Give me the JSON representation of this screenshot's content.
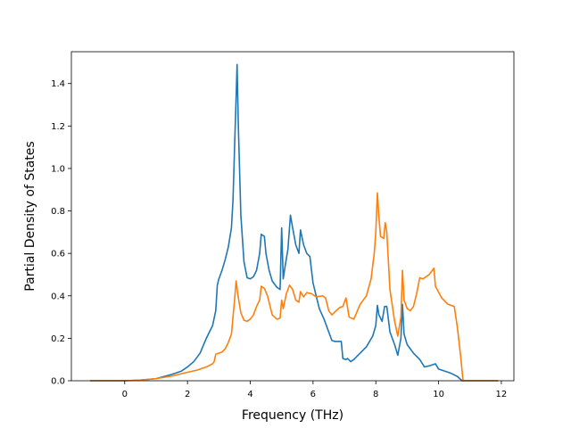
{
  "chart_data": {
    "type": "line",
    "title": "",
    "xlabel": "Frequency (THz)",
    "ylabel": "Partial Density of States",
    "xlim": [
      -1.7,
      12.4
    ],
    "ylim": [
      0.0,
      1.55
    ],
    "xticks": [
      0,
      2,
      4,
      6,
      8,
      10,
      12
    ],
    "yticks": [
      0.0,
      0.2,
      0.4,
      0.6,
      0.8,
      1.0,
      1.2,
      1.4
    ],
    "xtick_labels": [
      "0",
      "2",
      "4",
      "6",
      "8",
      "10",
      "12"
    ],
    "ytick_labels": [
      "0.0",
      "0.2",
      "0.4",
      "0.6",
      "0.8",
      "1.0",
      "1.2",
      "1.4"
    ],
    "grid": false,
    "legend": "none",
    "series": [
      {
        "color": "#1f77b4",
        "points": [
          [
            -1.1,
            0.0
          ],
          [
            0.0,
            0.0
          ],
          [
            0.5,
            0.003
          ],
          [
            1.0,
            0.01
          ],
          [
            1.5,
            0.03
          ],
          [
            1.8,
            0.045
          ],
          [
            2.0,
            0.065
          ],
          [
            2.2,
            0.09
          ],
          [
            2.4,
            0.13
          ],
          [
            2.6,
            0.2
          ],
          [
            2.8,
            0.26
          ],
          [
            2.9,
            0.33
          ],
          [
            2.95,
            0.45
          ],
          [
            3.0,
            0.48
          ],
          [
            3.1,
            0.52
          ],
          [
            3.2,
            0.57
          ],
          [
            3.3,
            0.63
          ],
          [
            3.4,
            0.72
          ],
          [
            3.45,
            0.85
          ],
          [
            3.5,
            1.1
          ],
          [
            3.55,
            1.34
          ],
          [
            3.58,
            1.49
          ],
          [
            3.62,
            1.2
          ],
          [
            3.7,
            0.78
          ],
          [
            3.8,
            0.56
          ],
          [
            3.9,
            0.485
          ],
          [
            4.0,
            0.48
          ],
          [
            4.1,
            0.49
          ],
          [
            4.2,
            0.52
          ],
          [
            4.3,
            0.6
          ],
          [
            4.35,
            0.69
          ],
          [
            4.45,
            0.68
          ],
          [
            4.5,
            0.6
          ],
          [
            4.6,
            0.52
          ],
          [
            4.7,
            0.47
          ],
          [
            4.85,
            0.44
          ],
          [
            4.95,
            0.43
          ],
          [
            5.0,
            0.72
          ],
          [
            5.05,
            0.48
          ],
          [
            5.1,
            0.53
          ],
          [
            5.2,
            0.62
          ],
          [
            5.28,
            0.78
          ],
          [
            5.35,
            0.72
          ],
          [
            5.45,
            0.64
          ],
          [
            5.55,
            0.6
          ],
          [
            5.6,
            0.71
          ],
          [
            5.7,
            0.64
          ],
          [
            5.8,
            0.6
          ],
          [
            5.9,
            0.585
          ],
          [
            6.0,
            0.46
          ],
          [
            6.1,
            0.4
          ],
          [
            6.2,
            0.34
          ],
          [
            6.35,
            0.29
          ],
          [
            6.5,
            0.23
          ],
          [
            6.6,
            0.19
          ],
          [
            6.7,
            0.185
          ],
          [
            6.9,
            0.185
          ],
          [
            6.95,
            0.105
          ],
          [
            7.05,
            0.1
          ],
          [
            7.1,
            0.105
          ],
          [
            7.2,
            0.09
          ],
          [
            7.3,
            0.1
          ],
          [
            7.5,
            0.13
          ],
          [
            7.7,
            0.16
          ],
          [
            7.9,
            0.21
          ],
          [
            8.0,
            0.26
          ],
          [
            8.05,
            0.355
          ],
          [
            8.1,
            0.31
          ],
          [
            8.2,
            0.28
          ],
          [
            8.28,
            0.35
          ],
          [
            8.35,
            0.35
          ],
          [
            8.45,
            0.23
          ],
          [
            8.6,
            0.17
          ],
          [
            8.7,
            0.12
          ],
          [
            8.8,
            0.2
          ],
          [
            8.85,
            0.36
          ],
          [
            8.9,
            0.22
          ],
          [
            9.0,
            0.17
          ],
          [
            9.2,
            0.13
          ],
          [
            9.4,
            0.1
          ],
          [
            9.55,
            0.065
          ],
          [
            9.7,
            0.07
          ],
          [
            9.9,
            0.08
          ],
          [
            10.0,
            0.055
          ],
          [
            10.2,
            0.045
          ],
          [
            10.4,
            0.035
          ],
          [
            10.6,
            0.02
          ],
          [
            10.75,
            0.0
          ],
          [
            11.9,
            0.0
          ]
        ]
      },
      {
        "color": "#ff7f0e",
        "points": [
          [
            -1.1,
            0.0
          ],
          [
            0.0,
            0.0
          ],
          [
            0.5,
            0.003
          ],
          [
            1.0,
            0.01
          ],
          [
            1.5,
            0.022
          ],
          [
            2.0,
            0.04
          ],
          [
            2.3,
            0.05
          ],
          [
            2.6,
            0.065
          ],
          [
            2.8,
            0.08
          ],
          [
            2.85,
            0.09
          ],
          [
            2.9,
            0.125
          ],
          [
            3.0,
            0.13
          ],
          [
            3.1,
            0.135
          ],
          [
            3.2,
            0.15
          ],
          [
            3.3,
            0.18
          ],
          [
            3.4,
            0.22
          ],
          [
            3.5,
            0.38
          ],
          [
            3.55,
            0.47
          ],
          [
            3.6,
            0.41
          ],
          [
            3.7,
            0.32
          ],
          [
            3.8,
            0.285
          ],
          [
            3.9,
            0.28
          ],
          [
            4.0,
            0.29
          ],
          [
            4.1,
            0.31
          ],
          [
            4.2,
            0.35
          ],
          [
            4.3,
            0.38
          ],
          [
            4.35,
            0.445
          ],
          [
            4.45,
            0.435
          ],
          [
            4.55,
            0.4
          ],
          [
            4.7,
            0.31
          ],
          [
            4.85,
            0.29
          ],
          [
            4.95,
            0.295
          ],
          [
            5.0,
            0.38
          ],
          [
            5.05,
            0.34
          ],
          [
            5.15,
            0.41
          ],
          [
            5.25,
            0.45
          ],
          [
            5.35,
            0.43
          ],
          [
            5.45,
            0.38
          ],
          [
            5.55,
            0.37
          ],
          [
            5.6,
            0.42
          ],
          [
            5.7,
            0.395
          ],
          [
            5.8,
            0.415
          ],
          [
            5.95,
            0.41
          ],
          [
            6.1,
            0.395
          ],
          [
            6.3,
            0.4
          ],
          [
            6.4,
            0.39
          ],
          [
            6.5,
            0.33
          ],
          [
            6.6,
            0.31
          ],
          [
            6.7,
            0.325
          ],
          [
            6.85,
            0.345
          ],
          [
            6.95,
            0.35
          ],
          [
            7.05,
            0.39
          ],
          [
            7.15,
            0.3
          ],
          [
            7.3,
            0.29
          ],
          [
            7.5,
            0.36
          ],
          [
            7.7,
            0.4
          ],
          [
            7.85,
            0.48
          ],
          [
            7.95,
            0.6
          ],
          [
            8.0,
            0.7
          ],
          [
            8.05,
            0.885
          ],
          [
            8.1,
            0.77
          ],
          [
            8.15,
            0.68
          ],
          [
            8.25,
            0.67
          ],
          [
            8.3,
            0.745
          ],
          [
            8.35,
            0.7
          ],
          [
            8.45,
            0.43
          ],
          [
            8.6,
            0.28
          ],
          [
            8.7,
            0.21
          ],
          [
            8.8,
            0.3
          ],
          [
            8.85,
            0.52
          ],
          [
            8.9,
            0.38
          ],
          [
            9.0,
            0.34
          ],
          [
            9.1,
            0.33
          ],
          [
            9.2,
            0.35
          ],
          [
            9.3,
            0.41
          ],
          [
            9.4,
            0.485
          ],
          [
            9.5,
            0.48
          ],
          [
            9.7,
            0.5
          ],
          [
            9.85,
            0.53
          ],
          [
            9.9,
            0.445
          ],
          [
            10.1,
            0.39
          ],
          [
            10.3,
            0.36
          ],
          [
            10.5,
            0.35
          ],
          [
            10.6,
            0.25
          ],
          [
            10.7,
            0.12
          ],
          [
            10.78,
            0.0
          ],
          [
            11.9,
            0.0
          ]
        ]
      }
    ]
  }
}
